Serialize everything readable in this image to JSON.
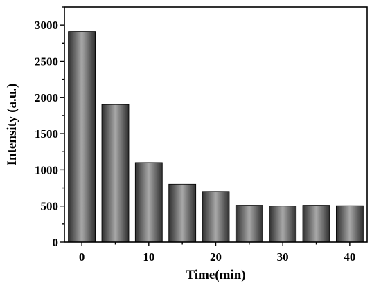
{
  "chart_data": {
    "type": "bar",
    "xlabel": "Time(min)",
    "ylabel": "Intensity (a.u.)",
    "x": [
      0,
      5,
      10,
      15,
      20,
      25,
      30,
      35,
      40
    ],
    "values": [
      2910,
      1900,
      1100,
      800,
      700,
      510,
      500,
      510,
      505
    ],
    "xlim": [
      -2.6,
      42.6
    ],
    "ylim": [
      0,
      3250
    ],
    "x_ticks": [
      0,
      10,
      20,
      30,
      40
    ],
    "x_tick_labels": [
      "0",
      "10",
      "20",
      "30",
      "40"
    ],
    "y_ticks": [
      0,
      500,
      1000,
      1500,
      2000,
      2500,
      3000
    ],
    "y_tick_labels": [
      "0",
      "500",
      "1000",
      "1500",
      "2000",
      "2500",
      "3000"
    ],
    "grid": false,
    "bar_color_dark": "#2e2e2e",
    "bar_color_light": "#a8a8a8"
  }
}
